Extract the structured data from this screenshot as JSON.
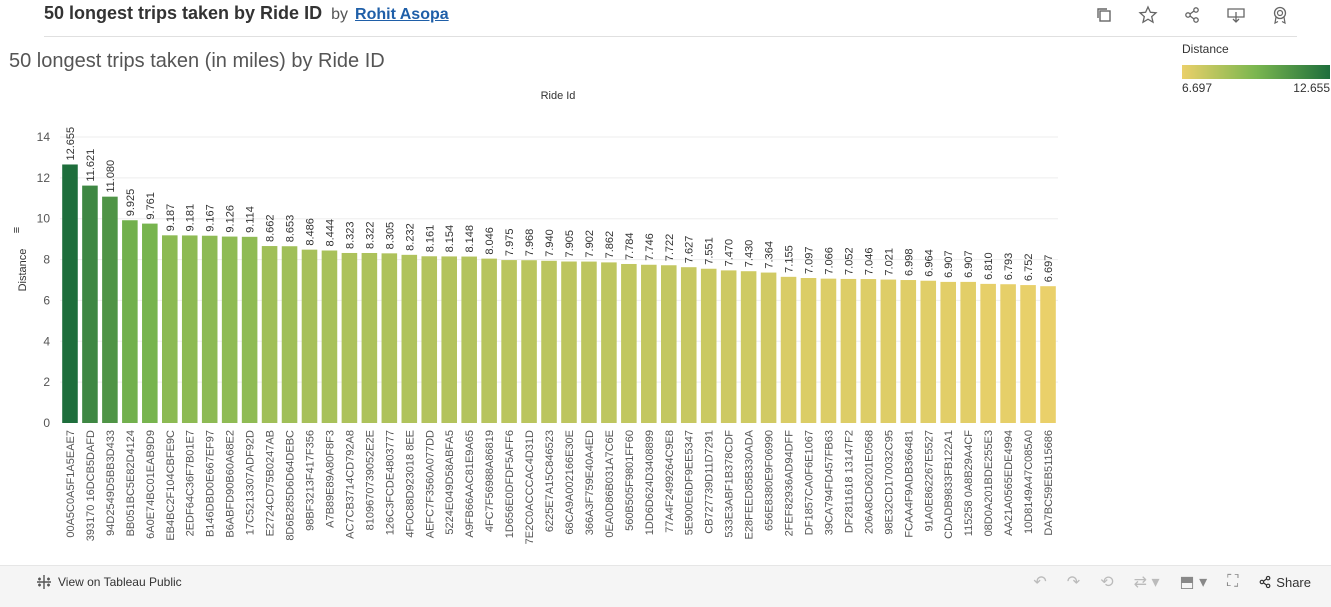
{
  "header": {
    "title": "50 longest trips taken by Ride ID",
    "by": "by",
    "author": "Rohit Asopa"
  },
  "sheet_title": "50 longest trips taken (in miles) by Ride ID",
  "legend": {
    "title": "Distance",
    "min_label": "6.697",
    "max_label": "12.655"
  },
  "footer": {
    "view_on": "View on Tableau Public",
    "share": "Share"
  },
  "colors": {
    "low": "#ead06a",
    "mid": "#7ab64f",
    "high": "#1e6e3c"
  },
  "chart_data": {
    "type": "bar",
    "title": "50 longest trips taken (in miles) by Ride ID",
    "xlabel": "Ride Id",
    "ylabel": "Distance",
    "ylim": [
      0,
      15
    ],
    "yticks": [
      0,
      2,
      4,
      6,
      8,
      10,
      12,
      14
    ],
    "categories": [
      "00A5C0A5F1A5EAE7",
      "393170 16DCB5DAFD",
      "94D2549D5BB3D433",
      "BB051BC5E82D4124",
      "6A0E74BC01EAB9D9",
      "EB4BC2F104CBFE9C",
      "2EDF64C36F7B01E7",
      "B146DBD0E667EF97",
      "B6ABFD90B60A68E2",
      "17C5213307ADF92D",
      "E2724CD75B0247AB",
      "8D6B285D6D64DEBC",
      "98BF3213F417F356",
      "A7B89E89A80F8F3",
      "AC7CB3714CD792A8",
      "8109670739052E2E",
      "126C3FCDE4803777",
      "4F0C88D923018 8EE",
      "AEFC7F3560A077DD",
      "5224E049D58ABFA5",
      "A9FB66AAC81E9A65",
      "4FC7F56988A86819",
      "1D656E0DFDF5AFF6",
      "7E2C0ACCCAC4D31D",
      "6225E7A15C846523",
      "68CA9A002166E30E",
      "366A3F759E40A4ED",
      "0EA0D86B031A7C6E",
      "560B505F9801FF60",
      "1DD6D624D3408899",
      "77A4F2499264C9E8",
      "5E900E6DF9EE5347",
      "CB727739D11D7291",
      "533E3ABF1B378CDF",
      "E28FEED85B330ADA",
      "656E8380E9F06990",
      "2FEF82936AD94DFF",
      "DF1857CA0F6E1067",
      "39CA794FD457FB63",
      "DF2811618 13147F2",
      "206A8CD6201E0568",
      "98E32CD170032C95",
      "FCAA4F9ADB366481",
      "91A0E862267E5527",
      "CDADB9833FB122A1",
      "115258 0A8B29A4CF",
      "08D0A201BDE255E3",
      "AA21A0565EDE4994",
      "10D8149A47C085A0",
      "DA7BC59EB5115686"
    ],
    "values": [
      12.655,
      11.621,
      11.08,
      9.925,
      9.761,
      9.187,
      9.181,
      9.167,
      9.126,
      9.114,
      8.662,
      8.653,
      8.486,
      8.444,
      8.323,
      8.322,
      8.305,
      8.232,
      8.161,
      8.154,
      8.148,
      8.046,
      7.975,
      7.968,
      7.94,
      7.905,
      7.902,
      7.862,
      7.784,
      7.746,
      7.722,
      7.627,
      7.551,
      7.47,
      7.43,
      7.364,
      7.155,
      7.097,
      7.066,
      7.052,
      7.046,
      7.021,
      6.998,
      6.964,
      6.907,
      6.907,
      6.81,
      6.793,
      6.752,
      6.697
    ],
    "value_labels": [
      "12.655",
      "11.621",
      "11.080",
      "9.925",
      "9.761",
      "9.187",
      "9.181",
      "9.167",
      "9.126",
      "9.114",
      "8.662",
      "8.653",
      "8.486",
      "8.444",
      "8.323",
      "8.322",
      "8.305",
      "8.232",
      "8.161",
      "8.154",
      "8.148",
      "8.046",
      "7.975",
      "7.968",
      "7.940",
      "7.905",
      "7.902",
      "7.862",
      "7.784",
      "7.746",
      "7.722",
      "7.627",
      "7.551",
      "7.470",
      "7.430",
      "7.364",
      "7.155",
      "7.097",
      "7.066",
      "7.052",
      "7.046",
      "7.021",
      "6.998",
      "6.964",
      "6.907",
      "6.907",
      "6.810",
      "6.793",
      "6.752",
      "6.697"
    ],
    "color_scale": {
      "field": "Distance",
      "min": 6.697,
      "max": 12.655
    }
  }
}
